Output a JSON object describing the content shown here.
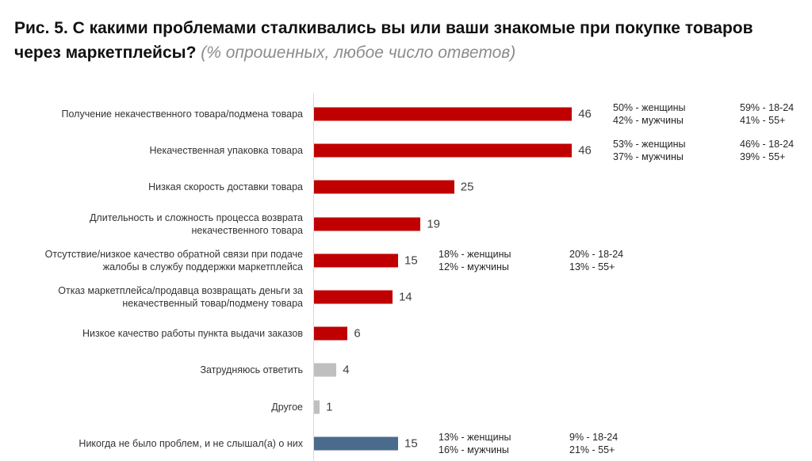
{
  "chart_data": {
    "type": "bar",
    "orientation": "horizontal",
    "title": "Рис. 5. С какими проблемами сталкивались вы или ваши знакомые при покупке товаров через маркетплейсы?",
    "subtitle": "(% опрошенных, любое число ответов)",
    "xlabel": "",
    "ylabel": "",
    "xlim": [
      0,
      50
    ],
    "grid": false,
    "categories": [
      "Получение некачественного товара/подмена товара",
      "Некачественная упаковка товара",
      "Низкая скорость доставки товара",
      "Длительность и сложность процесса возврата некачественного товара",
      "Отсутствие/низкое качество обратной связи при подаче жалобы в службу поддержки маркетплейса",
      "Отказ маркетплейса/продавца возвращать деньги за некачественный товар/подмену товара",
      "Низкое качество работы пункта выдачи заказов",
      "Затрудняюсь ответить",
      "Другое",
      "Никогда не было проблем, и не слышал(а) о них"
    ],
    "values": [
      46,
      46,
      25,
      19,
      15,
      14,
      6,
      4,
      1,
      15
    ],
    "bar_groups": [
      "problem",
      "problem",
      "problem",
      "problem",
      "problem",
      "problem",
      "problem",
      "neutral",
      "neutral",
      "none"
    ],
    "colors": {
      "problem": "#c00000",
      "neutral": "#bfbfbf",
      "none": "#4a6b8c"
    },
    "annotations": [
      {
        "row": 0,
        "gender": [
          "50% - женщины",
          "42% - мужчины"
        ],
        "age": [
          "59% - 18-24",
          "41% - 55+"
        ]
      },
      {
        "row": 1,
        "gender": [
          "53% - женщины",
          "37% - мужчины"
        ],
        "age": [
          "46% - 18-24",
          "39% - 55+"
        ]
      },
      {
        "row": 4,
        "gender": [
          "18% - женщины",
          "12% - мужчины"
        ],
        "age": [
          "20% - 18-24",
          "13% - 55+"
        ]
      },
      {
        "row": 9,
        "gender": [
          "13% - женщины",
          "16% - мужчины"
        ],
        "age": [
          "9% - 18-24",
          "21% - 55+"
        ]
      }
    ]
  }
}
